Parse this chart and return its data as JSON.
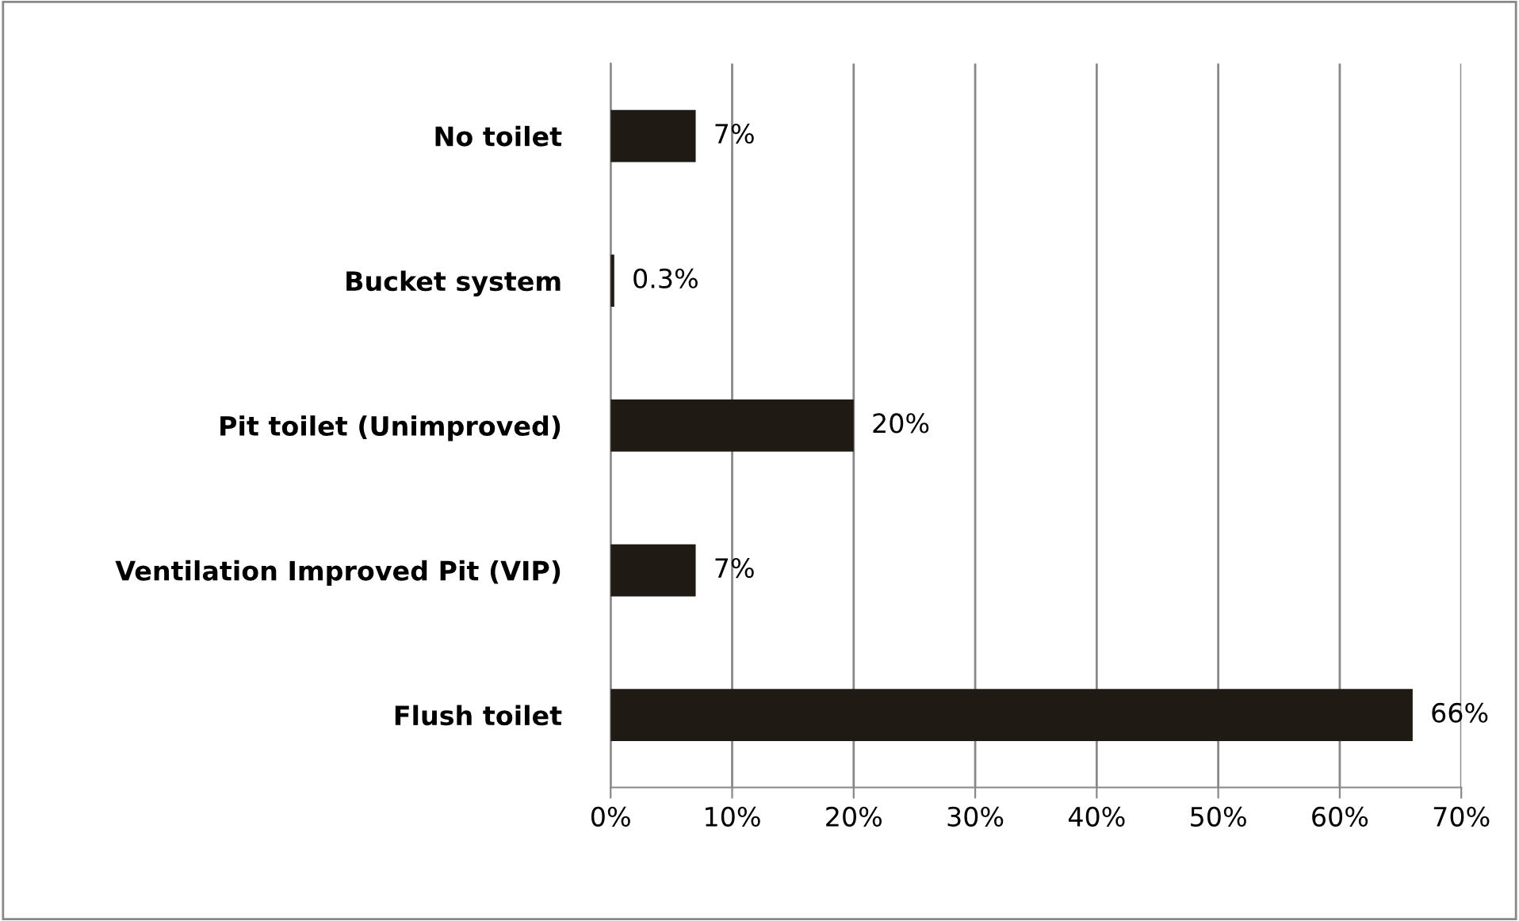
{
  "chart_data": {
    "type": "bar",
    "orientation": "horizontal",
    "categories": [
      "No toilet",
      "Bucket system",
      "Pit toilet (Unimproved)",
      "Ventilation Improved Pit (VIP)",
      "Flush toilet"
    ],
    "values": [
      7,
      0.3,
      20,
      7,
      66
    ],
    "value_labels": [
      "7%",
      "0.3%",
      "20%",
      "7%",
      "66%"
    ],
    "color": "#1f1a14",
    "xlim": [
      0,
      70
    ],
    "xticks": [
      {
        "value": 0,
        "label": "0%"
      },
      {
        "value": 10,
        "label": "10%"
      },
      {
        "value": 20,
        "label": "20%"
      },
      {
        "value": 30,
        "label": "30%"
      },
      {
        "value": 40,
        "label": "40%"
      },
      {
        "value": 50,
        "label": "50%"
      },
      {
        "value": 60,
        "label": "60%"
      },
      {
        "value": 70,
        "label": "70%"
      }
    ],
    "grid": "x"
  }
}
